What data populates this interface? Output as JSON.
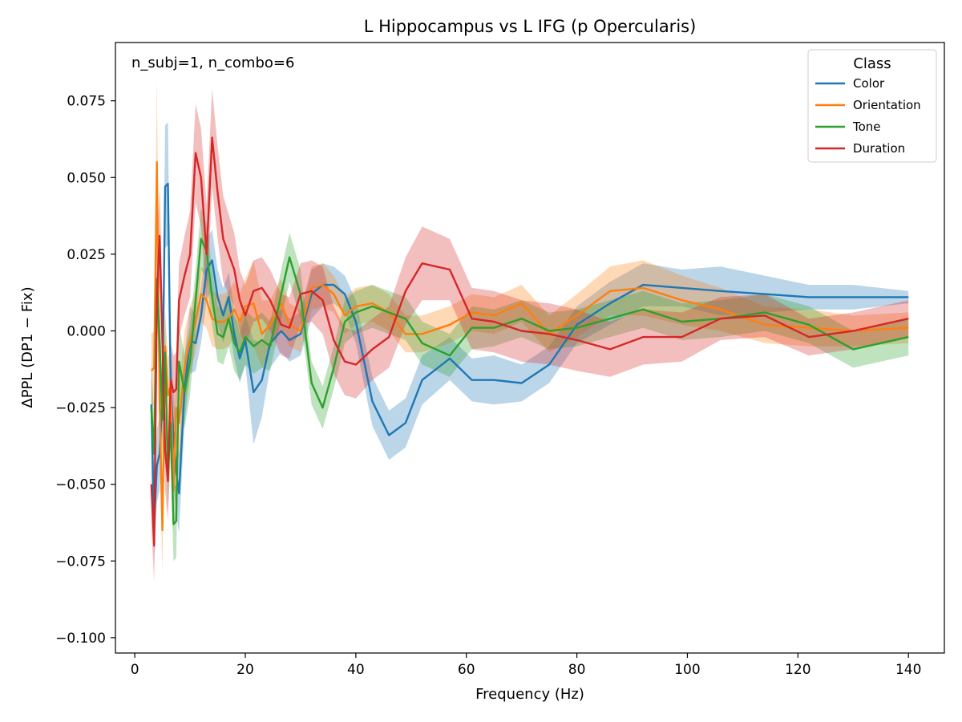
{
  "chart_data": {
    "type": "line",
    "title": "L Hippocampus vs L IFG (p Opercularis)",
    "xlabel": "Frequency (Hz)",
    "ylabel": "ΔPPL (DP1 − Fix)",
    "annotation": "n_subj=1, n_combo=6",
    "xlim": [
      -3.5,
      146.5
    ],
    "ylim": [
      -0.105,
      0.094
    ],
    "xticks": [
      0,
      20,
      40,
      60,
      80,
      100,
      120,
      140
    ],
    "xtick_labels": [
      "0",
      "20",
      "40",
      "60",
      "80",
      "100",
      "120",
      "140"
    ],
    "yticks": [
      -0.1,
      -0.075,
      -0.05,
      -0.025,
      0.0,
      0.025,
      0.05,
      0.075
    ],
    "ytick_labels": [
      "−0.100",
      "−0.075",
      "−0.050",
      "−0.025",
      "0.000",
      "0.025",
      "0.050",
      "0.075"
    ],
    "grid": false,
    "legend": {
      "title": "Class",
      "position": "upper right"
    },
    "series": [
      {
        "name": "Color",
        "color": "#1f77b4",
        "x": [
          3.0,
          3.5,
          4.0,
          4.5,
          5.0,
          5.5,
          6.0,
          6.5,
          7.0,
          7.5,
          8.0,
          9.0,
          10.0,
          11.0,
          12.0,
          13.0,
          14.0,
          15.0,
          16.0,
          17.0,
          18.0,
          19.0,
          20.0,
          21.5,
          23.0,
          24.5,
          26.5,
          28.0,
          30.0,
          32.0,
          34.0,
          36.0,
          38.0,
          40.0,
          43.0,
          46.0,
          49.0,
          52.0,
          57.0,
          61.0,
          65.0,
          70.0,
          75.0,
          80.0,
          86.0,
          92.0,
          99.0,
          106.0,
          114.0,
          122.0,
          130.0,
          140.0
        ],
        "y": [
          -0.024,
          -0.063,
          -0.044,
          -0.04,
          -0.022,
          0.047,
          0.048,
          -0.019,
          -0.034,
          -0.046,
          -0.053,
          -0.019,
          -0.003,
          -0.004,
          0.005,
          0.02,
          0.023,
          0.011,
          0.005,
          0.011,
          -0.001,
          -0.009,
          -0.003,
          -0.02,
          -0.016,
          -0.004,
          0.0,
          -0.003,
          -0.001,
          0.012,
          0.015,
          0.015,
          0.012,
          0.003,
          -0.023,
          -0.034,
          -0.03,
          -0.016,
          -0.009,
          -0.016,
          -0.016,
          -0.017,
          -0.011,
          0.002,
          0.009,
          0.015,
          0.014,
          0.013,
          0.012,
          0.011,
          0.011,
          0.011
        ],
        "err": [
          0.014,
          0.012,
          0.012,
          0.012,
          0.012,
          0.02,
          0.02,
          0.015,
          0.015,
          0.014,
          0.013,
          0.011,
          0.011,
          0.009,
          0.009,
          0.01,
          0.01,
          0.009,
          0.009,
          0.008,
          0.008,
          0.008,
          0.008,
          0.017,
          0.012,
          0.008,
          0.007,
          0.007,
          0.007,
          0.008,
          0.007,
          0.006,
          0.006,
          0.007,
          0.008,
          0.008,
          0.008,
          0.008,
          0.007,
          0.007,
          0.008,
          0.006,
          0.006,
          0.006,
          0.007,
          0.007,
          0.006,
          0.008,
          0.006,
          0.004,
          0.004,
          0.002
        ]
      },
      {
        "name": "Orientation",
        "color": "#ff7f0e",
        "x": [
          3.0,
          3.5,
          4.0,
          4.5,
          5.0,
          5.5,
          6.0,
          6.5,
          7.0,
          7.5,
          8.0,
          9.0,
          10.0,
          11.0,
          12.0,
          13.0,
          14.0,
          15.0,
          16.0,
          17.0,
          18.0,
          19.0,
          20.0,
          21.5,
          23.0,
          24.5,
          26.5,
          28.0,
          30.0,
          32.0,
          34.0,
          36.0,
          38.0,
          40.0,
          43.0,
          46.0,
          49.0,
          52.0,
          57.0,
          61.0,
          65.0,
          70.0,
          75.0,
          80.0,
          86.0,
          92.0,
          99.0,
          106.0,
          114.0,
          122.0,
          130.0,
          140.0
        ],
        "y": [
          -0.013,
          -0.012,
          0.055,
          -0.023,
          -0.065,
          -0.005,
          -0.021,
          -0.018,
          -0.052,
          -0.025,
          -0.03,
          -0.012,
          -0.003,
          0.003,
          0.012,
          0.01,
          0.004,
          0.003,
          0.003,
          0.004,
          0.007,
          0.003,
          0.008,
          0.009,
          -0.001,
          0.002,
          0.009,
          0.002,
          0.0,
          0.014,
          0.015,
          0.012,
          0.005,
          0.008,
          0.009,
          0.006,
          -0.001,
          -0.001,
          0.002,
          0.006,
          0.005,
          0.009,
          -0.001,
          0.005,
          0.013,
          0.014,
          0.01,
          0.007,
          0.002,
          0.001,
          0.0,
          0.001
        ],
        "err": [
          0.012,
          0.012,
          0.027,
          0.018,
          0.014,
          0.012,
          0.012,
          0.012,
          0.014,
          0.012,
          0.012,
          0.012,
          0.011,
          0.01,
          0.009,
          0.009,
          0.009,
          0.009,
          0.009,
          0.009,
          0.009,
          0.009,
          0.009,
          0.014,
          0.011,
          0.008,
          0.008,
          0.007,
          0.007,
          0.007,
          0.007,
          0.006,
          0.006,
          0.006,
          0.006,
          0.006,
          0.006,
          0.006,
          0.006,
          0.006,
          0.006,
          0.006,
          0.006,
          0.007,
          0.008,
          0.009,
          0.008,
          0.007,
          0.006,
          0.006,
          0.005,
          0.005
        ]
      },
      {
        "name": "Tone",
        "color": "#2ca02c",
        "x": [
          3.0,
          3.5,
          4.0,
          4.5,
          5.0,
          5.5,
          6.0,
          6.5,
          7.0,
          7.5,
          8.0,
          9.0,
          10.0,
          11.0,
          12.0,
          13.0,
          14.0,
          15.0,
          16.0,
          17.0,
          18.0,
          19.0,
          20.0,
          21.5,
          23.0,
          24.5,
          26.5,
          28.0,
          30.0,
          32.0,
          34.0,
          36.0,
          38.0,
          40.0,
          43.0,
          46.0,
          49.0,
          52.0,
          57.0,
          61.0,
          65.0,
          70.0,
          75.0,
          80.0,
          86.0,
          92.0,
          99.0,
          106.0,
          114.0,
          122.0,
          130.0,
          140.0
        ],
        "y": [
          -0.025,
          -0.04,
          0.017,
          -0.003,
          -0.029,
          -0.007,
          -0.047,
          -0.03,
          -0.063,
          -0.062,
          -0.01,
          -0.02,
          -0.01,
          0.01,
          0.03,
          0.026,
          0.011,
          -0.001,
          -0.002,
          0.004,
          -0.004,
          -0.007,
          -0.002,
          -0.005,
          -0.003,
          -0.005,
          0.012,
          0.024,
          0.012,
          -0.017,
          -0.025,
          -0.012,
          0.003,
          0.006,
          0.008,
          0.006,
          0.004,
          -0.004,
          -0.008,
          0.001,
          0.001,
          0.004,
          0.0,
          0.001,
          0.004,
          0.007,
          0.003,
          0.004,
          0.006,
          0.002,
          -0.006,
          -0.002
        ],
        "err": [
          0.014,
          0.012,
          0.012,
          0.012,
          0.012,
          0.012,
          0.012,
          0.012,
          0.012,
          0.012,
          0.012,
          0.012,
          0.011,
          0.01,
          0.01,
          0.009,
          0.009,
          0.009,
          0.009,
          0.009,
          0.009,
          0.009,
          0.009,
          0.009,
          0.009,
          0.008,
          0.008,
          0.008,
          0.008,
          0.007,
          0.007,
          0.007,
          0.007,
          0.007,
          0.007,
          0.007,
          0.007,
          0.007,
          0.007,
          0.007,
          0.006,
          0.006,
          0.006,
          0.006,
          0.006,
          0.006,
          0.006,
          0.006,
          0.006,
          0.006,
          0.006,
          0.006
        ]
      },
      {
        "name": "Duration",
        "color": "#d62728",
        "x": [
          3.0,
          3.5,
          4.0,
          4.5,
          5.0,
          5.5,
          6.0,
          6.5,
          7.0,
          7.5,
          8.0,
          9.0,
          10.0,
          11.0,
          12.0,
          13.0,
          14.0,
          15.0,
          16.0,
          17.0,
          18.0,
          19.0,
          20.0,
          21.5,
          23.0,
          24.5,
          26.5,
          28.0,
          30.0,
          32.0,
          34.0,
          36.0,
          38.0,
          40.0,
          43.0,
          46.0,
          49.0,
          52.0,
          57.0,
          61.0,
          65.0,
          70.0,
          75.0,
          80.0,
          86.0,
          92.0,
          99.0,
          106.0,
          114.0,
          122.0,
          130.0,
          140.0
        ],
        "y": [
          -0.05,
          -0.07,
          0.01,
          0.031,
          -0.003,
          -0.039,
          -0.049,
          -0.016,
          -0.02,
          -0.019,
          0.01,
          0.018,
          0.025,
          0.058,
          0.05,
          0.025,
          0.063,
          0.045,
          0.03,
          0.025,
          0.02,
          0.01,
          0.005,
          0.013,
          0.014,
          0.01,
          0.002,
          0.001,
          0.012,
          0.013,
          0.01,
          -0.003,
          -0.01,
          -0.011,
          -0.006,
          -0.002,
          0.013,
          0.022,
          0.02,
          0.004,
          0.003,
          0.0,
          -0.001,
          -0.003,
          -0.006,
          -0.002,
          -0.002,
          0.004,
          0.005,
          -0.002,
          0.0,
          0.004
        ],
        "err": [
          0.014,
          0.012,
          0.014,
          0.016,
          0.014,
          0.013,
          0.013,
          0.012,
          0.012,
          0.012,
          0.012,
          0.013,
          0.014,
          0.016,
          0.016,
          0.016,
          0.016,
          0.015,
          0.014,
          0.013,
          0.012,
          0.01,
          0.01,
          0.01,
          0.01,
          0.01,
          0.01,
          0.01,
          0.01,
          0.01,
          0.011,
          0.011,
          0.011,
          0.011,
          0.01,
          0.01,
          0.011,
          0.012,
          0.01,
          0.01,
          0.01,
          0.01,
          0.01,
          0.01,
          0.009,
          0.009,
          0.008,
          0.007,
          0.007,
          0.006,
          0.006,
          0.006
        ]
      }
    ]
  }
}
